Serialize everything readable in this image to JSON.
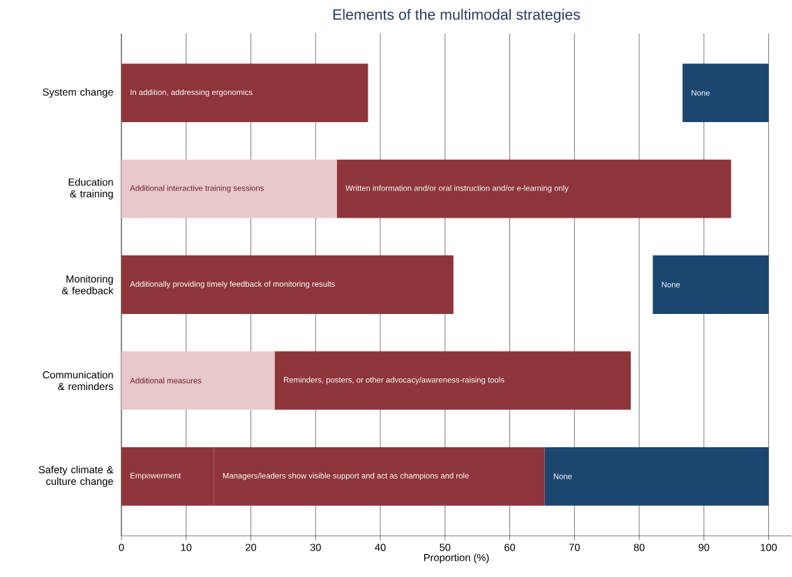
{
  "chart_data": {
    "type": "bar",
    "orientation": "horizontal",
    "title": "Elements of the multimodal strategies",
    "xlabel": "Proportion (%)",
    "categories": [
      "System change",
      "Education & training",
      "Monitoring & feedback",
      "Communication & reminders",
      "Safety climate & culture change"
    ],
    "series": [
      {
        "base": [
          0,
          0,
          0,
          0,
          0
        ],
        "values": [
          38.1,
          33.3,
          51.3,
          23.7,
          14.3
        ],
        "colors": [
          "#8e353c",
          "#e8c9cb",
          "#8e353c",
          "#e8c9cb",
          "#8e353c"
        ],
        "value_labels": [
          "In addition, addressing ergonomics",
          "Additional interactive training sessions",
          "Additionally providing timely feedback of monitoring results",
          "Additional measures",
          "Empowerment"
        ]
      },
      {
        "base": [
          null,
          33.3,
          null,
          23.7,
          14.3
        ],
        "values": [
          null,
          60.9,
          null,
          55.0,
          51.1
        ],
        "colors": [
          null,
          "#8e353c",
          null,
          "#8e353c",
          "#8e353c"
        ],
        "value_labels": [
          null,
          "Written information and/or oral instruction and/or e-learning only",
          null,
          "Reminders, posters, or other advocacy/awareness-raising tools",
          "Managers/leaders show visible support and act as champions and role"
        ]
      },
      {
        "base": [
          86.7,
          null,
          82.1,
          null,
          65.4
        ],
        "values": [
          13.3,
          null,
          17.9,
          null,
          34.6
        ],
        "colors": [
          "#1b4670",
          null,
          "#1b4670",
          null,
          "#1b4670"
        ],
        "value_labels": [
          "None",
          null,
          "None",
          null,
          "None"
        ]
      }
    ],
    "xlim": [
      0,
      103.5
    ],
    "xticks": [
      0,
      10,
      20,
      30,
      40,
      50,
      60,
      70,
      80,
      90,
      100
    ],
    "grid": "x"
  }
}
